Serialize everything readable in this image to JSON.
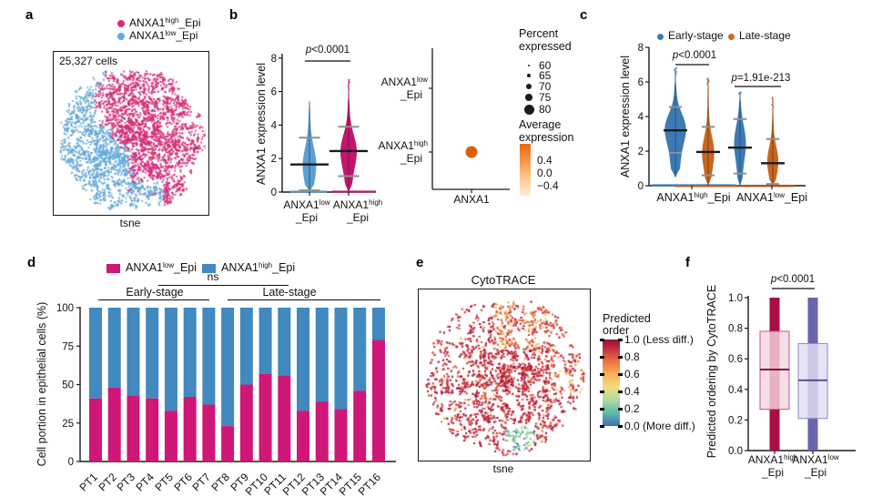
{
  "colors": {
    "pink": "#d42e79",
    "light_blue": "#64a8d8",
    "violin_blue": "#5b9fd0",
    "violin_pink": "#c2166d",
    "steel_blue": "#3d7ab5",
    "burnt_orange": "#c9661f",
    "bar_magenta": "#ce1776",
    "bar_blue": "#4189be",
    "crimson": "#a80d44",
    "purple": "#6a63ae",
    "dot_orange": "#dd5f0d",
    "axis": "#1a1a1a"
  },
  "panel_a": {
    "label": "a",
    "legend": [
      {
        "base": "ANXA1",
        "sup": "high",
        "rest": "_Epi",
        "color": "#d42e79"
      },
      {
        "base": "ANXA1",
        "sup": "low",
        "rest": "_Epi",
        "color": "#64a8d8"
      }
    ],
    "cells": "25,327 cells",
    "caption": "tsne"
  },
  "panel_b": {
    "label": "b",
    "ylabel": "ANXA1 expression level",
    "yticks": [
      "0",
      "2",
      "4",
      "6",
      "8"
    ],
    "p_it": "p",
    "p_rest": "<0.0001",
    "categories": [
      {
        "base": "ANXA1",
        "sup": "low",
        "rest": "_Epi"
      },
      {
        "base": "ANXA1",
        "sup": "high",
        "rest": "_Epi"
      }
    ],
    "dotplot": {
      "xlabel": "ANXA1",
      "rows": [
        {
          "base": "ANXA1",
          "sup": "low",
          "rest": "_Epi"
        },
        {
          "base": "ANXA1",
          "sup": "high",
          "rest": "_Epi"
        }
      ],
      "percent_title": [
        "Percent",
        "expressed"
      ],
      "percent_values": [
        "60",
        "65",
        "70",
        "75",
        "80"
      ],
      "avg_title": [
        "Average",
        "expression"
      ],
      "avg_ticks": [
        "0.4",
        "0.0",
        "−0.4"
      ]
    }
  },
  "panel_c": {
    "label": "c",
    "legend": [
      {
        "label": "Early-stage",
        "color": "#3d7ab5"
      },
      {
        "label": "Late-stage",
        "color": "#d2691e"
      }
    ],
    "ylabel": "ANXA1 expression level",
    "yticks": [
      "0",
      "2",
      "4",
      "6",
      "8"
    ],
    "p1_it": "p",
    "p1_rest": "<0.0001",
    "p2_it": "p",
    "p2_rest": "=1.91e-213",
    "categories": [
      {
        "base": "ANXA1",
        "sup": "high",
        "rest": "_Epi"
      },
      {
        "base": "ANXA1",
        "sup": "low",
        "rest": "_Epi"
      }
    ]
  },
  "panel_d": {
    "label": "d",
    "legend": [
      {
        "base": "ANXA1",
        "sup": "low",
        "rest": "_Epi",
        "color": "#ce1776"
      },
      {
        "base": "ANXA1",
        "sup": "high",
        "rest": "_Epi",
        "color": "#4189be"
      }
    ],
    "ns": "ns",
    "early_label": "Early-stage",
    "late_label": "Late-stage",
    "ylabel": "Cell portion in epithelial cells (%)",
    "yticks": [
      "0",
      "25",
      "50",
      "75",
      "100"
    ],
    "categories": [
      "PT1",
      "PT2",
      "PT3",
      "PT4",
      "PT5",
      "PT6",
      "PT7",
      "PT8",
      "PT9",
      "PT10",
      "PT11",
      "PT12",
      "PT13",
      "PT14",
      "PT15",
      "PT16"
    ]
  },
  "panel_e": {
    "label": "e",
    "title": "CytoTRACE",
    "caption": "tsne",
    "colorbar_title": [
      "Predicted",
      "order"
    ],
    "colorbar_ticks": [
      "1.0 (Less diff.)",
      "0.8",
      "0.6",
      "0.4",
      "0.2",
      "0.0 (More diff.)"
    ]
  },
  "panel_f": {
    "label": "f",
    "p_it": "p",
    "p_rest": "<0.0001",
    "ylabel": "Predicted ordering by CytoTRACE",
    "yticks": [
      "1.0",
      "0.8",
      "0.6",
      "0.4",
      "0.2",
      "0.0"
    ],
    "categories": [
      {
        "base": "ANXA1",
        "sup": "high",
        "rest": "_Epi"
      },
      {
        "base": "ANXA1",
        "sup": "low",
        "rest": "_Epi"
      }
    ]
  },
  "chart_data": [
    {
      "panel": "a",
      "type": "scatter",
      "title": "tsne",
      "annotation": "25,327 cells",
      "n_cells": 25327,
      "clusters": [
        {
          "name": "ANXA1high_Epi",
          "color": "#d42e79",
          "region": "right"
        },
        {
          "name": "ANXA1low_Epi",
          "color": "#64a8d8",
          "region": "left-and-bottom"
        }
      ]
    },
    {
      "panel": "b",
      "type": "violin",
      "ylabel": "ANXA1 expression level",
      "ylim": [
        0,
        8
      ],
      "yticks": [
        0,
        2,
        4,
        6,
        8
      ],
      "significance": "p<0.0001",
      "violins": [
        {
          "name": "ANXA1low_Epi",
          "color": "#5b9fd0",
          "stem": "#1f4e79",
          "min": 0,
          "max": 5.4,
          "mean": 1.65,
          "sd_low": 0.1,
          "sd_high": 3.25
        },
        {
          "name": "ANXA1high_Epi",
          "color": "#c2166d",
          "stem": "#7a0d49",
          "min": 0,
          "max": 6.0,
          "outliers_to": 6.7,
          "mean": 2.45,
          "sd_low": 0.95,
          "sd_high": 3.9
        }
      ]
    },
    {
      "panel": "b-dotplot",
      "type": "dotplot",
      "x": [
        "ANXA1"
      ],
      "rows": [
        "ANXA1low_Epi",
        "ANXA1high_Epi"
      ],
      "dots": [
        {
          "row": "ANXA1high_Epi",
          "x": "ANXA1",
          "percent_expressed": 75,
          "average_expression": 0.45
        }
      ],
      "percent_legend": [
        60,
        65,
        70,
        75,
        80
      ],
      "avg_expression_ticks": [
        0.4,
        0.0,
        -0.4
      ]
    },
    {
      "panel": "c",
      "type": "violin",
      "ylabel": "ANXA1 expression level",
      "ylim": [
        0,
        8
      ],
      "yticks": [
        0,
        2,
        4,
        6,
        8
      ],
      "groups": [
        "ANXA1high_Epi",
        "ANXA1low_Epi"
      ],
      "hues": [
        "Early-stage",
        "Late-stage"
      ],
      "significance": [
        {
          "between": "ANXA1high_Epi Early vs Late",
          "label": "p<0.0001"
        },
        {
          "between": "ANXA1low_Epi Early vs Late",
          "label": "p=1.91e-213"
        }
      ],
      "violins": [
        {
          "group": "ANXA1high_Epi",
          "hue": "Early-stage",
          "color": "#3d7ab5",
          "stem": "#1f4e79",
          "min": 0.5,
          "max": 6.3,
          "outliers_to": 6.8,
          "mean": 3.2,
          "sd_low": 1.9,
          "sd_high": 4.55
        },
        {
          "group": "ANXA1high_Epi",
          "hue": "Late-stage",
          "color": "#c9661f",
          "stem": "#5b3a16",
          "min": 0,
          "max": 5.8,
          "outliers_to": 6.2,
          "mean": 1.95,
          "sd_low": 0.6,
          "sd_high": 3.4
        },
        {
          "group": "ANXA1low_Epi",
          "hue": "Early-stage",
          "color": "#3d7ab5",
          "stem": "#1f4e79",
          "min": 0,
          "max": 5.3,
          "outliers_to": 5.4,
          "mean": 2.2,
          "sd_low": 0.7,
          "sd_high": 3.85
        },
        {
          "group": "ANXA1low_Epi",
          "hue": "Late-stage",
          "color": "#c9661f",
          "stem": "#5b3a16",
          "min": 0,
          "max": 4.4,
          "outliers_to": 5.1,
          "mean": 1.3,
          "sd_low": 0.1,
          "sd_high": 2.7
        }
      ]
    },
    {
      "panel": "d",
      "type": "stacked_bar",
      "ylabel": "Cell portion in epithelial cells (%)",
      "ylim": [
        0,
        100
      ],
      "yticks": [
        0,
        25,
        50,
        75,
        100
      ],
      "categories": [
        "PT1",
        "PT2",
        "PT3",
        "PT4",
        "PT5",
        "PT6",
        "PT7",
        "PT8",
        "PT9",
        "PT10",
        "PT11",
        "PT12",
        "PT13",
        "PT14",
        "PT15",
        "PT16"
      ],
      "series": [
        {
          "name": "ANXA1low_Epi",
          "color": "#ce1776",
          "values": [
            41,
            48,
            43,
            41,
            33,
            42,
            37,
            23,
            50,
            57,
            56,
            33,
            39,
            34,
            46,
            79
          ]
        },
        {
          "name": "ANXA1high_Epi",
          "color": "#4189be",
          "values": [
            59,
            52,
            57,
            59,
            67,
            58,
            63,
            77,
            50,
            43,
            44,
            67,
            61,
            66,
            54,
            21
          ]
        }
      ],
      "stage_groups": [
        {
          "label": "Early-stage",
          "from": "PT1",
          "to": "PT7"
        },
        {
          "label": "Late-stage",
          "from": "PT8",
          "to": "PT16"
        }
      ],
      "significance": "ns"
    },
    {
      "panel": "e",
      "type": "scatter_continuous",
      "title": "CytoTRACE",
      "xlabel": "tsne",
      "colorbar": {
        "title": "Predicted order",
        "ticks": [
          {
            "value": 1.0,
            "label": "1.0 (Less diff.)"
          },
          {
            "value": 0.8,
            "label": "0.8"
          },
          {
            "value": 0.6,
            "label": "0.6"
          },
          {
            "value": 0.4,
            "label": "0.4"
          },
          {
            "value": 0.2,
            "label": "0.2"
          },
          {
            "value": 0.0,
            "label": "0.0 (More diff.)"
          }
        ]
      }
    },
    {
      "panel": "f",
      "type": "box",
      "ylabel": "Predicted ordering by CytoTRACE",
      "ylim": [
        0,
        1
      ],
      "yticks": [
        1.0,
        0.8,
        0.6,
        0.4,
        0.2,
        0.0
      ],
      "significance": "p<0.0001",
      "boxes": [
        {
          "name": "ANXA1high_Epi",
          "color": "#a80d44",
          "box_fill": "#f6d5e0",
          "box_stroke": "#c05a80",
          "median_color": "#7c0b34",
          "whisker_min": 0,
          "whisker_max": 1,
          "q1": 0.27,
          "median": 0.53,
          "q3": 0.78
        },
        {
          "name": "ANXA1low_Epi",
          "color": "#6a63ae",
          "box_fill": "#e0def2",
          "box_stroke": "#8d86c4",
          "median_color": "#45408c",
          "whisker_min": 0,
          "whisker_max": 1,
          "q1": 0.21,
          "median": 0.46,
          "q3": 0.7
        }
      ]
    }
  ]
}
